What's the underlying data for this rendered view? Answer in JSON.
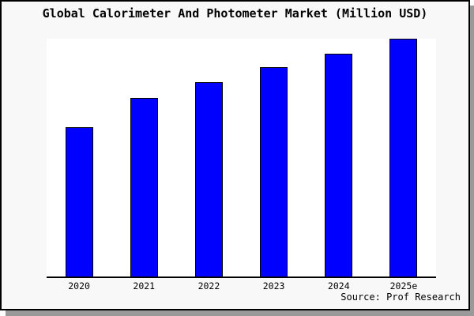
{
  "title": "Global Calorimeter And Photometer Market (Million USD)",
  "source": "Source: Prof Research",
  "chart_data": {
    "type": "bar",
    "title": "Global Calorimeter And Photometer Market (Million USD)",
    "categories": [
      "2020",
      "2021",
      "2022",
      "2023",
      "2024",
      "2025e"
    ],
    "values": [
      189,
      226,
      246,
      265,
      282,
      301
    ],
    "value_unit": "relative bar height in px (y-axis has no tick labels or gridlines)",
    "xlabel": "",
    "ylabel": "",
    "legend": false,
    "grid": false,
    "bar_color": "#0000ff",
    "bar_edge_color": "#000000",
    "background_color": "#f8f8f8",
    "plot_background_color": "#ffffff",
    "frame_border_color": "#000000",
    "shadow_color": "#999999"
  }
}
